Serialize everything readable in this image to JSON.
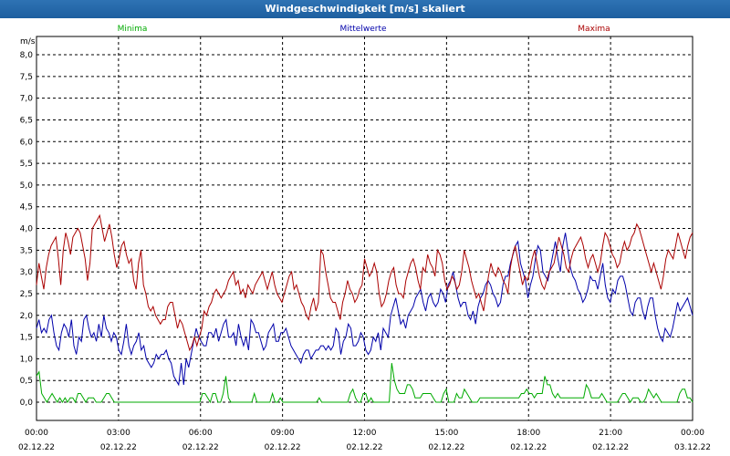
{
  "window": {
    "title": "Windgeschwindigkeit [m/s] skaliert"
  },
  "chart_data": {
    "type": "line",
    "ylabel": "m/s",
    "ylim": [
      0,
      8
    ],
    "y_ticks": [
      "0,0",
      "0,5",
      "1,0",
      "1,5",
      "2,0",
      "2,5",
      "3,0",
      "3,5",
      "4,0",
      "4,5",
      "5,0",
      "5,5",
      "6,0",
      "6,5",
      "7,0",
      "7,5",
      "8,0"
    ],
    "x_ticks": [
      {
        "time": "00:00",
        "date": "02.12.22"
      },
      {
        "time": "03:00",
        "date": "02.12.22"
      },
      {
        "time": "06:00",
        "date": "02.12.22"
      },
      {
        "time": "09:00",
        "date": "02.12.22"
      },
      {
        "time": "12:00",
        "date": "02.12.22"
      },
      {
        "time": "15:00",
        "date": "02.12.22"
      },
      {
        "time": "18:00",
        "date": "02.12.22"
      },
      {
        "time": "21:00",
        "date": "02.12.22"
      },
      {
        "time": "00:00",
        "date": "03.12.22"
      }
    ],
    "x_range_hours": [
      0,
      24
    ],
    "grid": true,
    "series": [
      {
        "name": "Minima",
        "color": "#00aa00",
        "values": [
          0.6,
          0.7,
          0.2,
          0.1,
          0.0,
          0.1,
          0.2,
          0.1,
          0.0,
          0.1,
          0.0,
          0.1,
          0.0,
          0.1,
          0.1,
          0.0,
          0.2,
          0.2,
          0.1,
          0.0,
          0.1,
          0.1,
          0.1,
          0.0,
          0.0,
          0.0,
          0.1,
          0.2,
          0.2,
          0.1,
          0.0,
          0.0,
          0.0,
          0.0,
          0.0,
          0.0,
          0.0,
          0.0,
          0.0,
          0.0,
          0.0,
          0.0,
          0.0,
          0.0,
          0.0,
          0.0,
          0.0,
          0.0,
          0.0,
          0.0,
          0.0,
          0.0,
          0.0,
          0.0,
          0.0,
          0.0,
          0.0,
          0.0,
          0.0,
          0.0,
          0.0,
          0.0,
          0.0,
          0.0,
          0.2,
          0.2,
          0.1,
          0.0,
          0.2,
          0.2,
          0.0,
          0.0,
          0.2,
          0.6,
          0.1,
          0.0,
          0.0,
          0.0,
          0.0,
          0.0,
          0.0,
          0.0,
          0.0,
          0.0,
          0.2,
          0.0,
          0.0,
          0.0,
          0.0,
          0.0,
          0.0,
          0.2,
          0.0,
          0.0,
          0.1,
          0.0,
          0.0,
          0.0,
          0.0,
          0.0,
          0.0,
          0.0,
          0.0,
          0.0,
          0.0,
          0.0,
          0.0,
          0.0,
          0.0,
          0.1,
          0.0,
          0.0,
          0.0,
          0.0,
          0.0,
          0.0,
          0.0,
          0.0,
          0.0,
          0.0,
          0.0,
          0.2,
          0.3,
          0.1,
          0.0,
          0.0,
          0.2,
          0.2,
          0.0,
          0.1,
          0.0,
          0.0,
          0.0,
          0.0,
          0.0,
          0.0,
          0.0,
          0.9,
          0.5,
          0.3,
          0.2,
          0.2,
          0.2,
          0.4,
          0.4,
          0.3,
          0.1,
          0.1,
          0.1,
          0.2,
          0.2,
          0.2,
          0.2,
          0.1,
          0.0,
          0.0,
          0.0,
          0.2,
          0.3,
          0.0,
          0.0,
          0.0,
          0.2,
          0.1,
          0.1,
          0.3,
          0.2,
          0.1,
          0.0,
          0.0,
          0.0,
          0.1,
          0.1,
          0.1,
          0.1,
          0.1,
          0.1,
          0.1,
          0.1,
          0.1,
          0.1,
          0.1,
          0.1,
          0.1,
          0.1,
          0.1,
          0.1,
          0.2,
          0.2,
          0.3,
          0.2,
          0.2,
          0.1,
          0.2,
          0.2,
          0.2,
          0.6,
          0.4,
          0.4,
          0.2,
          0.1,
          0.2,
          0.1,
          0.1,
          0.1,
          0.1,
          0.1,
          0.1,
          0.1,
          0.1,
          0.1,
          0.1,
          0.4,
          0.3,
          0.1,
          0.1,
          0.1,
          0.1,
          0.2,
          0.1,
          0.0,
          0.0,
          0.0,
          0.0,
          0.0,
          0.1,
          0.2,
          0.2,
          0.1,
          0.0,
          0.1,
          0.1,
          0.1,
          0.0,
          0.0,
          0.1,
          0.3,
          0.2,
          0.1,
          0.2,
          0.1,
          0.0,
          0.0,
          0.0,
          0.0,
          0.0,
          0.0,
          0.0,
          0.2,
          0.3,
          0.3,
          0.1,
          0.1,
          0.0
        ]
      },
      {
        "name": "Mittelwerte",
        "color": "#0000aa",
        "values": [
          1.7,
          1.9,
          1.6,
          1.7,
          1.6,
          1.9,
          2.0,
          1.6,
          1.3,
          1.2,
          1.6,
          1.8,
          1.7,
          1.5,
          1.9,
          1.3,
          1.1,
          1.5,
          1.4,
          1.9,
          2.0,
          1.7,
          1.5,
          1.6,
          1.4,
          1.8,
          1.5,
          2.0,
          1.7,
          1.6,
          1.4,
          1.6,
          1.5,
          1.2,
          1.1,
          1.4,
          1.8,
          1.3,
          1.1,
          1.3,
          1.4,
          1.6,
          1.2,
          1.3,
          1.0,
          0.9,
          0.8,
          0.9,
          1.1,
          1.0,
          1.1,
          1.1,
          1.2,
          1.0,
          0.9,
          0.6,
          0.5,
          0.4,
          0.9,
          0.4,
          1.0,
          0.8,
          1.1,
          1.4,
          1.7,
          1.5,
          1.4,
          1.3,
          1.3,
          1.6,
          1.6,
          1.5,
          1.7,
          1.4,
          1.6,
          1.8,
          1.9,
          1.5,
          1.5,
          1.6,
          1.3,
          1.8,
          1.5,
          1.3,
          1.5,
          1.2,
          1.9,
          1.8,
          1.6,
          1.6,
          1.4,
          1.2,
          1.3,
          1.6,
          1.7,
          1.8,
          1.4,
          1.4,
          1.6,
          1.6,
          1.7,
          1.5,
          1.3,
          1.2,
          1.1,
          1.0,
          0.9,
          1.1,
          1.2,
          1.2,
          1.0,
          1.1,
          1.2,
          1.2,
          1.3,
          1.3,
          1.2,
          1.3,
          1.2,
          1.3,
          1.7,
          1.6,
          1.1,
          1.4,
          1.5,
          1.8,
          1.7,
          1.3,
          1.3,
          1.4,
          1.6,
          1.5,
          1.2,
          1.1,
          1.2,
          1.5,
          1.4,
          1.6,
          1.2,
          1.7,
          1.6,
          1.5,
          2.0,
          2.2,
          2.4,
          2.1,
          1.8,
          1.9,
          1.7,
          2.0,
          2.1,
          2.2,
          2.4,
          2.5,
          2.6,
          2.3,
          2.1,
          2.4,
          2.5,
          2.3,
          2.2,
          2.3,
          2.6,
          2.5,
          2.3,
          2.7,
          2.8,
          3.0,
          2.7,
          2.4,
          2.2,
          2.3,
          2.3,
          2.0,
          1.9,
          2.1,
          1.8,
          2.2,
          2.4,
          2.5,
          2.7,
          2.8,
          2.7,
          2.5,
          2.4,
          2.2,
          2.3,
          2.7,
          2.9,
          2.9,
          3.2,
          3.4,
          3.6,
          3.7,
          3.2,
          3.0,
          2.8,
          2.4,
          2.7,
          2.9,
          3.3,
          3.6,
          3.5,
          3.0,
          2.9,
          2.8,
          3.1,
          3.4,
          3.7,
          3.3,
          3.0,
          3.6,
          3.9,
          3.5,
          3.1,
          2.9,
          2.8,
          2.6,
          2.5,
          2.3,
          2.4,
          2.6,
          2.9,
          2.8,
          2.8,
          2.6,
          2.9,
          3.2,
          2.7,
          2.4,
          2.3,
          2.6,
          2.5,
          2.8,
          2.9,
          2.9,
          2.7,
          2.4,
          2.1,
          2.0,
          2.3,
          2.4,
          2.4,
          2.1,
          1.9,
          2.2,
          2.4,
          2.4,
          2.0,
          1.7,
          1.5,
          1.4,
          1.7,
          1.6,
          1.5,
          1.7,
          2.0,
          2.3,
          2.1,
          2.2,
          2.3,
          2.4,
          2.2,
          2.0
        ]
      },
      {
        "name": "Maxima",
        "color": "#aa0000",
        "values": [
          2.7,
          3.2,
          2.9,
          2.6,
          3.1,
          3.4,
          3.6,
          3.7,
          3.8,
          3.3,
          2.7,
          3.5,
          3.9,
          3.7,
          3.4,
          3.8,
          3.9,
          4.0,
          3.9,
          3.6,
          3.3,
          2.8,
          3.2,
          4.0,
          4.1,
          4.2,
          4.3,
          4.0,
          3.7,
          3.9,
          4.1,
          3.8,
          3.4,
          3.1,
          3.3,
          3.6,
          3.7,
          3.4,
          3.2,
          3.3,
          2.8,
          2.6,
          3.2,
          3.5,
          2.7,
          2.5,
          2.2,
          2.1,
          2.2,
          2.0,
          1.9,
          1.8,
          1.9,
          1.9,
          2.2,
          2.3,
          2.3,
          2.0,
          1.7,
          1.9,
          1.8,
          1.6,
          1.4,
          1.2,
          1.3,
          1.5,
          1.3,
          1.5,
          1.7,
          2.1,
          2.0,
          2.2,
          2.3,
          2.5,
          2.6,
          2.5,
          2.4,
          2.5,
          2.6,
          2.8,
          2.9,
          3.0,
          2.7,
          2.8,
          2.5,
          2.6,
          2.4,
          2.7,
          2.6,
          2.5,
          2.7,
          2.8,
          2.9,
          3.0,
          2.8,
          2.6,
          2.8,
          3.0,
          2.7,
          2.5,
          2.4,
          2.3,
          2.5,
          2.7,
          2.9,
          3.0,
          2.6,
          2.7,
          2.5,
          2.3,
          2.2,
          2.0,
          1.9,
          2.2,
          2.4,
          2.1,
          2.3,
          3.5,
          3.4,
          3.0,
          2.7,
          2.4,
          2.3,
          2.3,
          2.1,
          1.9,
          2.3,
          2.5,
          2.8,
          2.6,
          2.5,
          2.3,
          2.4,
          2.6,
          2.7,
          3.3,
          3.1,
          2.9,
          3.0,
          3.2,
          3.0,
          2.5,
          2.2,
          2.3,
          2.5,
          2.8,
          3.0,
          3.1,
          2.7,
          2.5,
          2.5,
          2.4,
          2.8,
          3.0,
          3.2,
          3.3,
          3.1,
          2.8,
          2.6,
          3.1,
          3.0,
          3.4,
          3.2,
          3.1,
          2.9,
          3.5,
          3.4,
          3.2,
          2.8,
          2.6,
          2.7,
          2.9,
          2.8,
          2.6,
          2.7,
          3.0,
          3.5,
          3.3,
          3.1,
          2.8,
          2.6,
          2.4,
          2.5,
          2.3,
          2.1,
          2.5,
          2.9,
          3.2,
          3.0,
          2.9,
          3.1,
          3.0,
          2.8,
          2.7,
          2.5,
          3.1,
          3.4,
          3.6,
          3.3,
          3.0,
          2.7,
          2.9,
          2.8,
          3.0,
          3.3,
          3.5,
          3.2,
          2.9,
          2.7,
          2.6,
          2.8,
          3.0,
          3.1,
          3.2,
          3.5,
          3.8,
          3.6,
          3.4,
          3.1,
          3.0,
          3.3,
          3.5,
          3.6,
          3.7,
          3.8,
          3.6,
          3.3,
          3.1,
          3.3,
          3.4,
          3.2,
          3.0,
          3.2,
          3.6,
          3.9,
          3.8,
          3.6,
          3.4,
          3.3,
          3.1,
          3.2,
          3.5,
          3.7,
          3.5,
          3.6,
          3.8,
          3.9,
          4.1,
          4.0,
          3.8,
          3.6,
          3.4,
          3.2,
          3.0,
          3.2,
          3.0,
          2.8,
          2.6,
          2.9,
          3.3,
          3.5,
          3.4,
          3.3,
          3.6,
          3.9,
          3.7,
          3.5,
          3.3,
          3.6,
          3.8,
          3.9
        ]
      }
    ]
  }
}
